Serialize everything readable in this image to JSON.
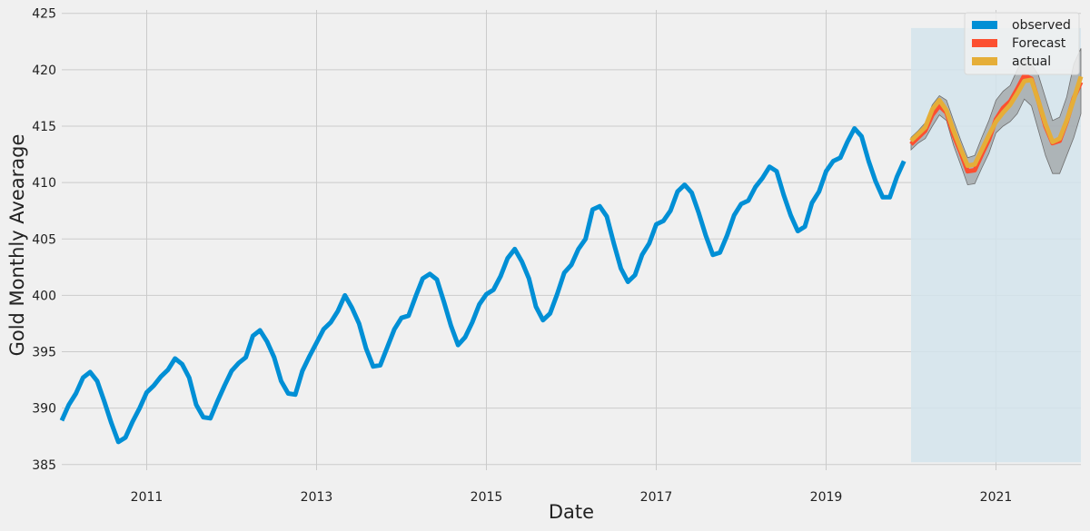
{
  "chart_data": {
    "type": "line",
    "title": "",
    "xlabel": "Date",
    "ylabel": "Gold Monthly Avearage",
    "x_range": [
      "2010-01",
      "2022-01"
    ],
    "ylim": [
      384.5,
      425.3
    ],
    "x_ticks": [
      "2011",
      "2013",
      "2015",
      "2017",
      "2019",
      "2021"
    ],
    "y_ticks": [
      385,
      390,
      395,
      400,
      405,
      410,
      415,
      420,
      425
    ],
    "grid": true,
    "legend_position": "top-right",
    "colors": {
      "observed": "#008fd5",
      "forecast": "#fc4f30",
      "actual": "#e5ae38",
      "confidence_band": "#8a8a8a",
      "forecast_region": "#d4e4ec",
      "background": "#f0f0f0",
      "grid": "#cbcbcb"
    },
    "legend": [
      {
        "key": "observed",
        "label": "observed",
        "color": "#008fd5"
      },
      {
        "key": "forecast",
        "label": "Forecast",
        "color": "#fc4f30"
      },
      {
        "key": "actual",
        "label": "actual",
        "color": "#e5ae38"
      }
    ],
    "forecast_region": {
      "x": [
        "2020-01",
        "2022-01"
      ],
      "y": [
        385.2,
        423.7
      ]
    },
    "series": [
      {
        "key": "observed",
        "name": "observed",
        "x": [
          "2010-01",
          "2010-02",
          "2010-03",
          "2010-04",
          "2010-05",
          "2010-06",
          "2010-07",
          "2010-08",
          "2010-09",
          "2010-10",
          "2010-11",
          "2010-12",
          "2011-01",
          "2011-02",
          "2011-03",
          "2011-04",
          "2011-05",
          "2011-06",
          "2011-07",
          "2011-08",
          "2011-09",
          "2011-10",
          "2011-11",
          "2011-12",
          "2012-01",
          "2012-02",
          "2012-03",
          "2012-04",
          "2012-05",
          "2012-06",
          "2012-07",
          "2012-08",
          "2012-09",
          "2012-10",
          "2012-11",
          "2012-12",
          "2013-01",
          "2013-02",
          "2013-03",
          "2013-04",
          "2013-05",
          "2013-06",
          "2013-07",
          "2013-08",
          "2013-09",
          "2013-10",
          "2013-11",
          "2013-12",
          "2014-01",
          "2014-02",
          "2014-03",
          "2014-04",
          "2014-05",
          "2014-06",
          "2014-07",
          "2014-08",
          "2014-09",
          "2014-10",
          "2014-11",
          "2014-12",
          "2015-01",
          "2015-02",
          "2015-03",
          "2015-04",
          "2015-05",
          "2015-06",
          "2015-07",
          "2015-08",
          "2015-09",
          "2015-10",
          "2015-11",
          "2015-12",
          "2016-01",
          "2016-02",
          "2016-03",
          "2016-04",
          "2016-05",
          "2016-06",
          "2016-07",
          "2016-08",
          "2016-09",
          "2016-10",
          "2016-11",
          "2016-12",
          "2017-01",
          "2017-02",
          "2017-03",
          "2017-04",
          "2017-05",
          "2017-06",
          "2017-07",
          "2017-08",
          "2017-09",
          "2017-10",
          "2017-11",
          "2017-12",
          "2018-01",
          "2018-02",
          "2018-03",
          "2018-04",
          "2018-05",
          "2018-06",
          "2018-07",
          "2018-08",
          "2018-09",
          "2018-10",
          "2018-11",
          "2018-12",
          "2019-01",
          "2019-02",
          "2019-03",
          "2019-04",
          "2019-05",
          "2019-06",
          "2019-07",
          "2019-08",
          "2019-09",
          "2019-10",
          "2019-11",
          "2019-12"
        ],
        "values": [
          388.9,
          390.3,
          391.3,
          392.7,
          393.2,
          392.4,
          390.6,
          388.7,
          387.0,
          387.4,
          388.8,
          390.0,
          391.4,
          392.0,
          392.8,
          393.4,
          394.4,
          393.9,
          392.7,
          390.3,
          389.2,
          389.1,
          390.6,
          392.0,
          393.3,
          394.0,
          394.5,
          396.4,
          396.9,
          395.9,
          394.5,
          392.4,
          391.3,
          391.2,
          393.3,
          394.6,
          395.8,
          397.0,
          397.6,
          398.6,
          400.0,
          398.9,
          397.5,
          395.3,
          393.7,
          393.8,
          395.4,
          397.0,
          398.0,
          398.2,
          399.9,
          401.5,
          401.9,
          401.4,
          399.4,
          397.3,
          395.6,
          396.3,
          397.6,
          399.2,
          400.1,
          400.5,
          401.7,
          403.3,
          404.1,
          403.0,
          401.5,
          399.0,
          397.8,
          398.4,
          400.1,
          402.0,
          402.7,
          404.1,
          405.0,
          407.6,
          407.9,
          407.0,
          404.6,
          402.4,
          401.2,
          401.8,
          403.6,
          404.6,
          406.3,
          406.6,
          407.5,
          409.2,
          409.8,
          409.1,
          407.3,
          405.3,
          403.6,
          403.8,
          405.3,
          407.1,
          408.1,
          408.4,
          409.6,
          410.4,
          411.4,
          411.0,
          408.9,
          407.1,
          405.7,
          406.1,
          408.2,
          409.2,
          411.0,
          411.9,
          412.2,
          413.6,
          414.8,
          414.1,
          411.9,
          410.1,
          408.7,
          408.7,
          410.5,
          411.9
        ]
      },
      {
        "key": "forecast",
        "name": "Forecast",
        "x": [
          "2020-01",
          "2020-02",
          "2020-03",
          "2020-04",
          "2020-05",
          "2020-06",
          "2020-07",
          "2020-08",
          "2020-09",
          "2020-10",
          "2020-11",
          "2020-12",
          "2021-01",
          "2021-02",
          "2021-03",
          "2021-04",
          "2021-05",
          "2021-06",
          "2021-07",
          "2021-08",
          "2021-09",
          "2021-10",
          "2021-11",
          "2021-12",
          "2022-01"
        ],
        "values": [
          413.4,
          414.0,
          414.6,
          416.0,
          416.8,
          416.2,
          414.2,
          412.7,
          411.0,
          411.1,
          412.5,
          413.8,
          415.6,
          416.6,
          417.2,
          418.3,
          419.5,
          419.2,
          417.2,
          415.0,
          413.5,
          413.7,
          415.4,
          417.5,
          418.9
        ]
      },
      {
        "key": "actual",
        "name": "actual",
        "x": [
          "2020-01",
          "2020-02",
          "2020-03",
          "2020-04",
          "2020-05",
          "2020-06",
          "2020-07",
          "2020-08",
          "2020-09",
          "2020-10",
          "2020-11",
          "2020-12",
          "2021-01",
          "2021-02",
          "2021-03",
          "2021-04",
          "2021-05",
          "2021-06",
          "2021-07",
          "2021-08",
          "2021-09",
          "2021-10",
          "2021-11",
          "2021-12",
          "2022-01"
        ],
        "values": [
          413.7,
          414.3,
          414.9,
          416.5,
          417.3,
          416.4,
          414.6,
          413.0,
          411.5,
          411.6,
          412.9,
          414.2,
          415.4,
          416.2,
          416.9,
          417.9,
          419.0,
          419.1,
          417.2,
          415.2,
          413.6,
          413.9,
          415.5,
          417.4,
          419.4
        ]
      }
    ],
    "confidence_band": {
      "x": [
        "2020-01",
        "2020-02",
        "2020-03",
        "2020-04",
        "2020-05",
        "2020-06",
        "2020-07",
        "2020-08",
        "2020-09",
        "2020-10",
        "2020-11",
        "2020-12",
        "2021-01",
        "2021-02",
        "2021-03",
        "2021-04",
        "2021-05",
        "2021-06",
        "2021-07",
        "2021-08",
        "2021-09",
        "2021-10",
        "2021-11",
        "2021-12",
        "2022-01"
      ],
      "lower": [
        412.9,
        413.5,
        413.9,
        415.0,
        416.0,
        415.5,
        413.3,
        411.6,
        409.8,
        409.9,
        411.3,
        412.6,
        414.4,
        415.0,
        415.4,
        416.1,
        417.4,
        416.8,
        414.6,
        412.4,
        410.8,
        410.8,
        412.4,
        414.0,
        416.1
      ],
      "upper": [
        414.0,
        414.6,
        415.3,
        416.9,
        417.7,
        417.3,
        415.5,
        413.8,
        412.2,
        412.4,
        414.0,
        415.5,
        417.3,
        418.1,
        418.6,
        420.0,
        421.1,
        420.5,
        419.5,
        417.5,
        415.5,
        415.8,
        417.6,
        420.5,
        421.9
      ]
    }
  }
}
